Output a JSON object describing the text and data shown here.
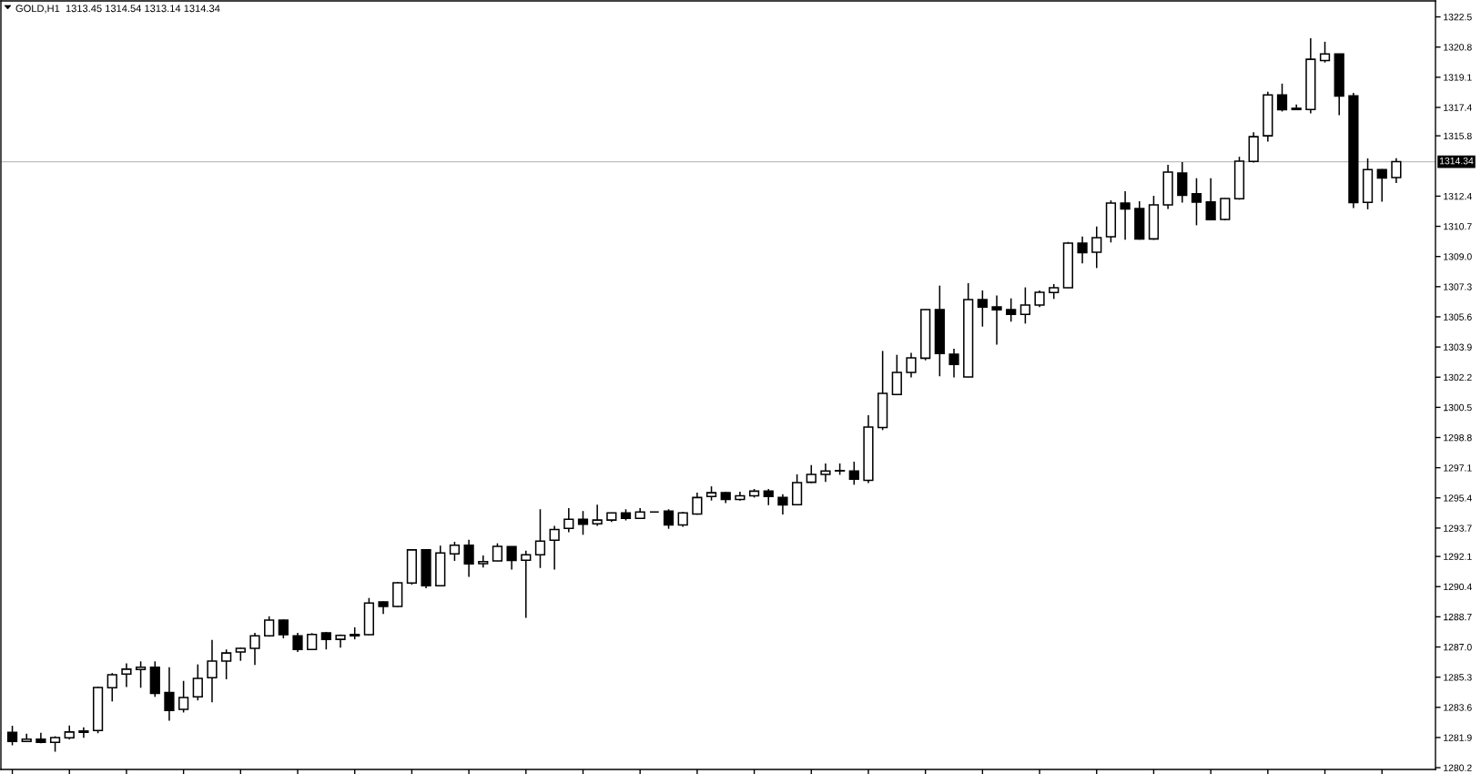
{
  "chart_data": {
    "type": "candlestick",
    "title": "GOLD,H1  1313.45 1314.54 1313.14 1314.34",
    "categories": [
      null,
      null,
      null,
      null,
      null,
      null,
      null,
      null,
      null,
      null,
      null,
      null,
      null,
      null,
      null,
      null,
      null,
      null,
      null,
      null,
      null,
      null,
      null,
      null,
      null,
      null,
      null,
      null,
      null,
      null,
      null,
      null,
      null,
      null,
      null,
      null,
      null,
      null,
      null,
      null,
      null,
      null,
      null,
      null,
      null,
      null,
      null,
      null,
      null,
      null,
      null,
      null,
      null,
      null,
      null,
      null,
      null,
      null,
      null,
      null,
      null,
      null,
      null,
      null,
      null,
      null,
      null,
      null,
      null,
      null,
      null,
      null,
      null,
      null,
      null,
      null,
      null,
      null,
      null,
      null,
      null,
      null,
      null,
      null,
      null,
      null,
      null,
      null,
      null,
      null,
      null,
      null,
      null,
      null,
      null,
      null,
      null,
      null
    ],
    "ohlc": [
      [
        1282.19,
        1282.56,
        1281.46,
        1281.68
      ],
      [
        1281.68,
        1282.12,
        1281.66,
        1281.81
      ],
      [
        1281.81,
        1282.16,
        1281.57,
        1281.63
      ],
      [
        1281.63,
        1281.97,
        1281.1,
        1281.9
      ],
      [
        1281.88,
        1282.58,
        1281.79,
        1282.21
      ],
      [
        1282.19,
        1282.47,
        1281.88,
        1282.27
      ],
      [
        1282.29,
        1284.76,
        1282.14,
        1284.72
      ],
      [
        1284.7,
        1285.53,
        1283.93,
        1285.44
      ],
      [
        1285.47,
        1286.08,
        1284.74,
        1285.75
      ],
      [
        1285.73,
        1286.19,
        1284.7,
        1285.86
      ],
      [
        1285.86,
        1286.19,
        1284.19,
        1284.39
      ],
      [
        1284.43,
        1285.86,
        1282.85,
        1283.42
      ],
      [
        1283.49,
        1285.09,
        1283.31,
        1284.15
      ],
      [
        1284.19,
        1286.02,
        1283.99,
        1285.23
      ],
      [
        1285.27,
        1287.4,
        1283.88,
        1286.21
      ],
      [
        1286.21,
        1286.86,
        1285.18,
        1286.66
      ],
      [
        1286.72,
        1286.96,
        1286.22,
        1286.92
      ],
      [
        1286.92,
        1287.8,
        1285.99,
        1287.63
      ],
      [
        1287.63,
        1288.73,
        1287.58,
        1288.51
      ],
      [
        1288.51,
        1288.55,
        1287.49,
        1287.69
      ],
      [
        1287.63,
        1287.8,
        1286.72,
        1286.86
      ],
      [
        1286.86,
        1287.78,
        1286.85,
        1287.71
      ],
      [
        1287.8,
        1287.85,
        1286.86,
        1287.43
      ],
      [
        1287.43,
        1287.71,
        1286.96,
        1287.65
      ],
      [
        1287.63,
        1288.11,
        1287.43,
        1287.71
      ],
      [
        1287.69,
        1289.76,
        1287.67,
        1289.48
      ],
      [
        1289.54,
        1289.56,
        1288.86,
        1289.28
      ],
      [
        1289.28,
        1290.67,
        1289.25,
        1290.62
      ],
      [
        1290.6,
        1292.49,
        1290.51,
        1292.47
      ],
      [
        1292.47,
        1292.49,
        1290.31,
        1290.45
      ],
      [
        1290.45,
        1292.71,
        1290.45,
        1292.3
      ],
      [
        1292.25,
        1292.93,
        1291.85,
        1292.73
      ],
      [
        1292.73,
        1293.04,
        1290.95,
        1291.68
      ],
      [
        1291.7,
        1292.16,
        1291.48,
        1291.81
      ],
      [
        1291.85,
        1292.84,
        1291.84,
        1292.67
      ],
      [
        1292.65,
        1292.67,
        1291.36,
        1291.87
      ],
      [
        1291.89,
        1292.42,
        1288.64,
        1292.19
      ],
      [
        1292.19,
        1294.76,
        1291.45,
        1292.97
      ],
      [
        1293.01,
        1293.83,
        1291.36,
        1293.62
      ],
      [
        1293.68,
        1294.82,
        1293.47,
        1294.19
      ],
      [
        1294.19,
        1294.66,
        1293.32,
        1293.92
      ],
      [
        1293.94,
        1295.02,
        1293.83,
        1294.15
      ],
      [
        1294.15,
        1294.57,
        1294.04,
        1294.55
      ],
      [
        1294.55,
        1294.76,
        1294.13,
        1294.25
      ],
      [
        1294.25,
        1294.82,
        1294.23,
        1294.61
      ],
      [
        1294.61,
        1294.61,
        1294.61,
        1294.61
      ],
      [
        1294.66,
        1294.76,
        1293.66,
        1293.88
      ],
      [
        1293.88,
        1294.61,
        1293.77,
        1294.55
      ],
      [
        1294.49,
        1295.69,
        1294.45,
        1295.42
      ],
      [
        1295.48,
        1296.05,
        1295.25,
        1295.69
      ],
      [
        1295.69,
        1295.75,
        1295.1,
        1295.31
      ],
      [
        1295.31,
        1295.75,
        1295.25,
        1295.52
      ],
      [
        1295.52,
        1295.9,
        1295.42,
        1295.78
      ],
      [
        1295.78,
        1295.9,
        1294.99,
        1295.48
      ],
      [
        1295.42,
        1295.61,
        1294.47,
        1295.01
      ],
      [
        1295.02,
        1296.73,
        1295.01,
        1296.26
      ],
      [
        1296.28,
        1297.25,
        1296.24,
        1296.72
      ],
      [
        1296.72,
        1297.34,
        1296.3,
        1296.92
      ],
      [
        1296.94,
        1297.34,
        1296.7,
        1296.92
      ],
      [
        1296.92,
        1297.44,
        1296.14,
        1296.45
      ],
      [
        1296.39,
        1300.06,
        1296.24,
        1299.39
      ],
      [
        1299.37,
        1303.68,
        1299.22,
        1301.29
      ],
      [
        1301.22,
        1303.46,
        1301.19,
        1302.47
      ],
      [
        1302.47,
        1303.57,
        1302.18,
        1303.29
      ],
      [
        1303.27,
        1306.03,
        1303.15,
        1306.01
      ],
      [
        1306.01,
        1307.36,
        1302.25,
        1303.53
      ],
      [
        1303.5,
        1303.8,
        1302.18,
        1302.92
      ],
      [
        1302.21,
        1307.5,
        1302.2,
        1306.57
      ],
      [
        1306.57,
        1307.09,
        1305.05,
        1306.15
      ],
      [
        1306.16,
        1306.8,
        1304.03,
        1305.99
      ],
      [
        1306.01,
        1306.64,
        1305.33,
        1305.74
      ],
      [
        1305.74,
        1307.26,
        1305.22,
        1306.27
      ],
      [
        1306.27,
        1307.09,
        1306.15,
        1306.98
      ],
      [
        1306.97,
        1307.45,
        1306.61,
        1307.24
      ],
      [
        1307.24,
        1309.82,
        1307.22,
        1309.75
      ],
      [
        1309.75,
        1310.13,
        1308.61,
        1309.22
      ],
      [
        1309.24,
        1310.69,
        1308.35,
        1310.06
      ],
      [
        1310.11,
        1312.16,
        1309.79,
        1312.01
      ],
      [
        1312.01,
        1312.68,
        1309.94,
        1311.68
      ],
      [
        1311.7,
        1312.11,
        1309.94,
        1309.99
      ],
      [
        1309.99,
        1312.42,
        1309.94,
        1311.91
      ],
      [
        1311.91,
        1314.16,
        1311.68,
        1313.75
      ],
      [
        1313.7,
        1314.32,
        1312.04,
        1312.45
      ],
      [
        1312.54,
        1313.41,
        1310.76,
        1312.06
      ],
      [
        1312.08,
        1313.41,
        1311.07,
        1311.07
      ],
      [
        1311.09,
        1312.28,
        1311.04,
        1312.27
      ],
      [
        1312.25,
        1314.62,
        1312.2,
        1314.37
      ],
      [
        1314.36,
        1316.0,
        1314.29,
        1315.75
      ],
      [
        1315.8,
        1318.28,
        1315.47,
        1318.1
      ],
      [
        1318.1,
        1318.74,
        1317.17,
        1317.27
      ],
      [
        1317.35,
        1317.56,
        1317.28,
        1317.28
      ],
      [
        1317.28,
        1321.3,
        1317.06,
        1320.11
      ],
      [
        1320.04,
        1321.1,
        1319.93,
        1320.41
      ],
      [
        1320.41,
        1320.43,
        1316.96,
        1318.04
      ],
      [
        1318.05,
        1318.22,
        1311.73,
        1312.04
      ],
      [
        1312.05,
        1314.53,
        1311.66,
        1313.9
      ],
      [
        1313.9,
        1313.92,
        1312.09,
        1313.42
      ],
      [
        1313.45,
        1314.54,
        1313.14,
        1314.34
      ]
    ],
    "color": "#000000",
    "ylim": [
      1280.1,
      1323.4
    ],
    "yticks": [
      1280.2,
      1281.9,
      1283.6,
      1285.3,
      {
        "value": 1287,
        "label": "1287.0"
      },
      1288.7,
      1290.4,
      1292.1,
      1293.7,
      1295.4,
      1297.1,
      1298.8,
      1300.5,
      1302.2,
      1303.9,
      1305.6,
      1307.3,
      {
        "value": 1309,
        "label": "1309.0"
      },
      1310.7,
      1312.4,
      1315.8,
      1317.4,
      1319.1,
      1320.8,
      1322.5
    ],
    "ref_lines": [
      {
        "axis": "y",
        "value": 1314.34,
        "label": "1314.34",
        "color": "#c0c0c0"
      }
    ],
    "tick_labels": "y"
  }
}
